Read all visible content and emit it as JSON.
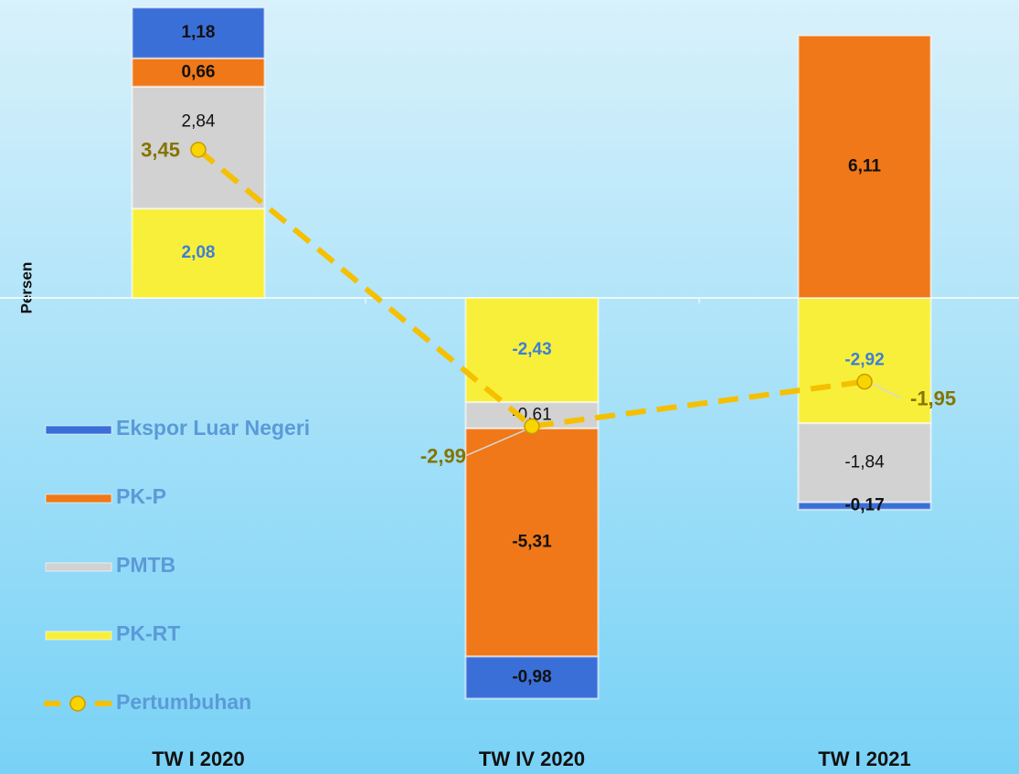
{
  "chart_data": {
    "type": "bar",
    "y_label": "Persen",
    "categories": [
      "TW I 2020",
      "TW IV 2020",
      "TW I 2021"
    ],
    "series": [
      {
        "name": "PK-RT",
        "color": "#f8ef3a",
        "label_color": "#3d7fd6",
        "label_bold": true,
        "values": [
          2.08,
          -2.43,
          -2.92
        ],
        "value_labels": [
          "2,08",
          "-2,43",
          "-2,92"
        ]
      },
      {
        "name": "PMTB",
        "color": "#d2d2d2",
        "label_color": "#111111",
        "label_bold": false,
        "values": [
          2.84,
          -0.61,
          -1.84
        ],
        "value_labels": [
          "2,84",
          "-0,61",
          "-1,84"
        ]
      },
      {
        "name": "PK-P",
        "color": "#f07818",
        "label_color": "#111111",
        "label_bold": true,
        "values": [
          0.66,
          -5.31,
          6.11
        ],
        "value_labels": [
          "0,66",
          "-5,31",
          "6,11"
        ]
      },
      {
        "name": "Ekspor Luar Negeri",
        "color": "#3a6fd8",
        "label_color": "#111111",
        "label_bold": true,
        "values": [
          1.18,
          -0.98,
          -0.17
        ],
        "value_labels": [
          "1,18",
          "-0,98",
          "-0,17"
        ]
      },
      {
        "name": "Pertumbuhan",
        "type": "line",
        "color": "#f5c000",
        "label_color": "#857400",
        "label_bold": true,
        "values": [
          3.45,
          -2.99,
          -1.95
        ],
        "value_labels": [
          "3,45",
          "-2,99",
          "-1,95"
        ]
      }
    ],
    "ylim": [
      -10,
      7
    ]
  }
}
